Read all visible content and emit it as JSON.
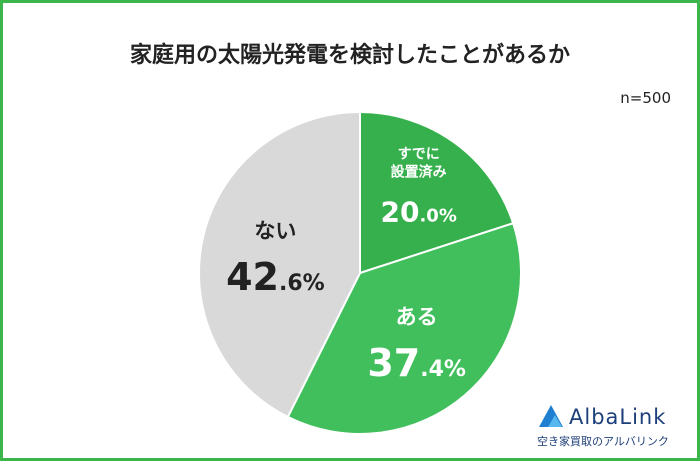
{
  "chart_data": {
    "type": "pie",
    "title": "家庭用の太陽光発電を検討したことがあるか",
    "note": "n=500",
    "categories": [
      "すでに\n設置済み",
      "ある",
      "ない"
    ],
    "values": [
      20.0,
      37.4,
      42.6
    ],
    "value_labels": [
      "20.0%",
      "37.4%",
      "42.6%"
    ],
    "colors": [
      "#35b04c",
      "#41bf5c",
      "#d9d9d9"
    ],
    "label_colors": [
      "#ffffff",
      "#ffffff",
      "#222222"
    ]
  },
  "logo": {
    "name": "AlbaLink",
    "tagline": "空き家買取のアルバリンク"
  }
}
